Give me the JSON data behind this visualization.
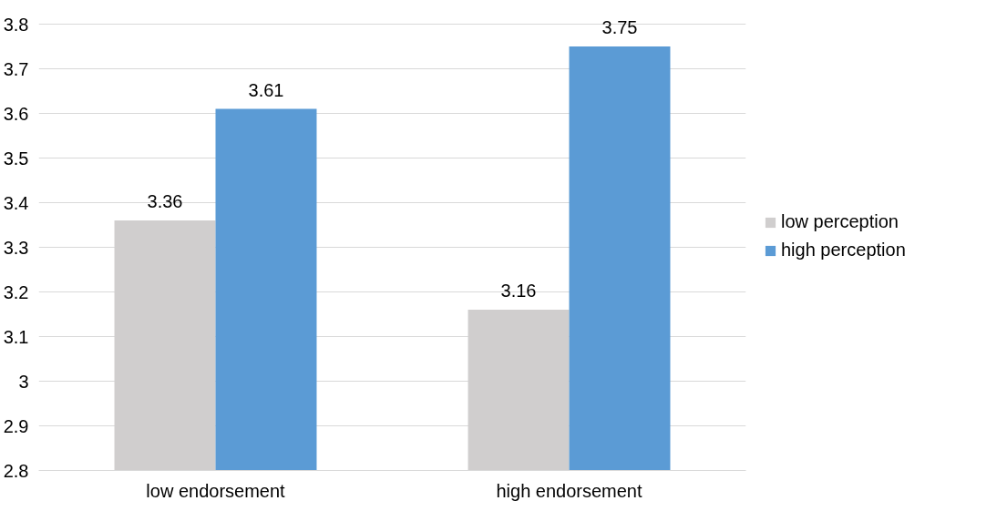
{
  "chart_data": {
    "type": "bar",
    "categories": [
      "low endorsement",
      "high endorsement"
    ],
    "series": [
      {
        "name": "low perception",
        "color": "#d0cece",
        "values": [
          3.36,
          3.16
        ]
      },
      {
        "name": "high perception",
        "color": "#5b9bd5",
        "values": [
          3.61,
          3.75
        ]
      }
    ],
    "ylim": [
      2.8,
      3.8
    ],
    "yticks": [
      2.8,
      2.9,
      3,
      3.1,
      3.2,
      3.3,
      3.4,
      3.5,
      3.6,
      3.7,
      3.8
    ],
    "grid": "y",
    "legend": "right",
    "data_labels": true
  }
}
